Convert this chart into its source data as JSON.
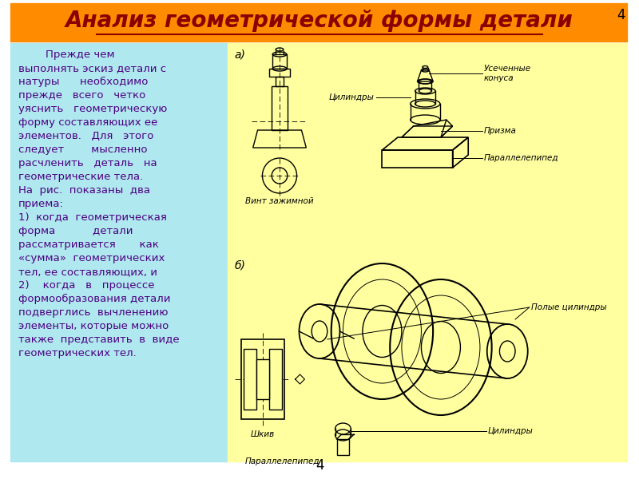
{
  "title": "Анализ геометрической формы детали",
  "title_bg": "#FF8C00",
  "title_color": "#8B0000",
  "title_fontsize": 20,
  "page_bg": "#FFFFFF",
  "left_panel_bg": "#B0E8F0",
  "right_panel_bg": "#FFFFA0",
  "page_number": "4",
  "page_number_corner": "4",
  "body_text": "        Прежде чем\nвыполнять эскиз детали с\nнатуры      необходимо\nпрежде   всего   четко\nуяснить   геометрическую\nформу составляющих ее\nэлементов.   Для   этого\nследует        мысленно\nрасчленить   деталь   на\nгеометрические тела.\nНа  рис.  показаны  два\nприема:\n1)  когда  геометрическая\nформа           детали\nрассматривается       как\n«сумма»  геометрических\nтел, ее составляющих, и\n2)    когда   в   процессе\nформообразования детали\nподверглись  вычленению\nэлементы, которые можно\nтакже  представить  в  виде\nгеометрических тел.",
  "body_fontsize": 9.5,
  "body_color": "#4B0082",
  "label_a": "а)",
  "label_b": "б)",
  "label_vint": "Винт зажимной",
  "label_shkiv": "Шкив",
  "label_para1": "Параллелепипед",
  "label_prizma": "Призма",
  "label_cylinders": "Цилиндры",
  "label_truncated": "Усеченные\nконуса",
  "label_hollow_cyl": "Полые цилиндры",
  "label_para2": "Параллелепипед",
  "label_cyl2": "Цилиндры"
}
